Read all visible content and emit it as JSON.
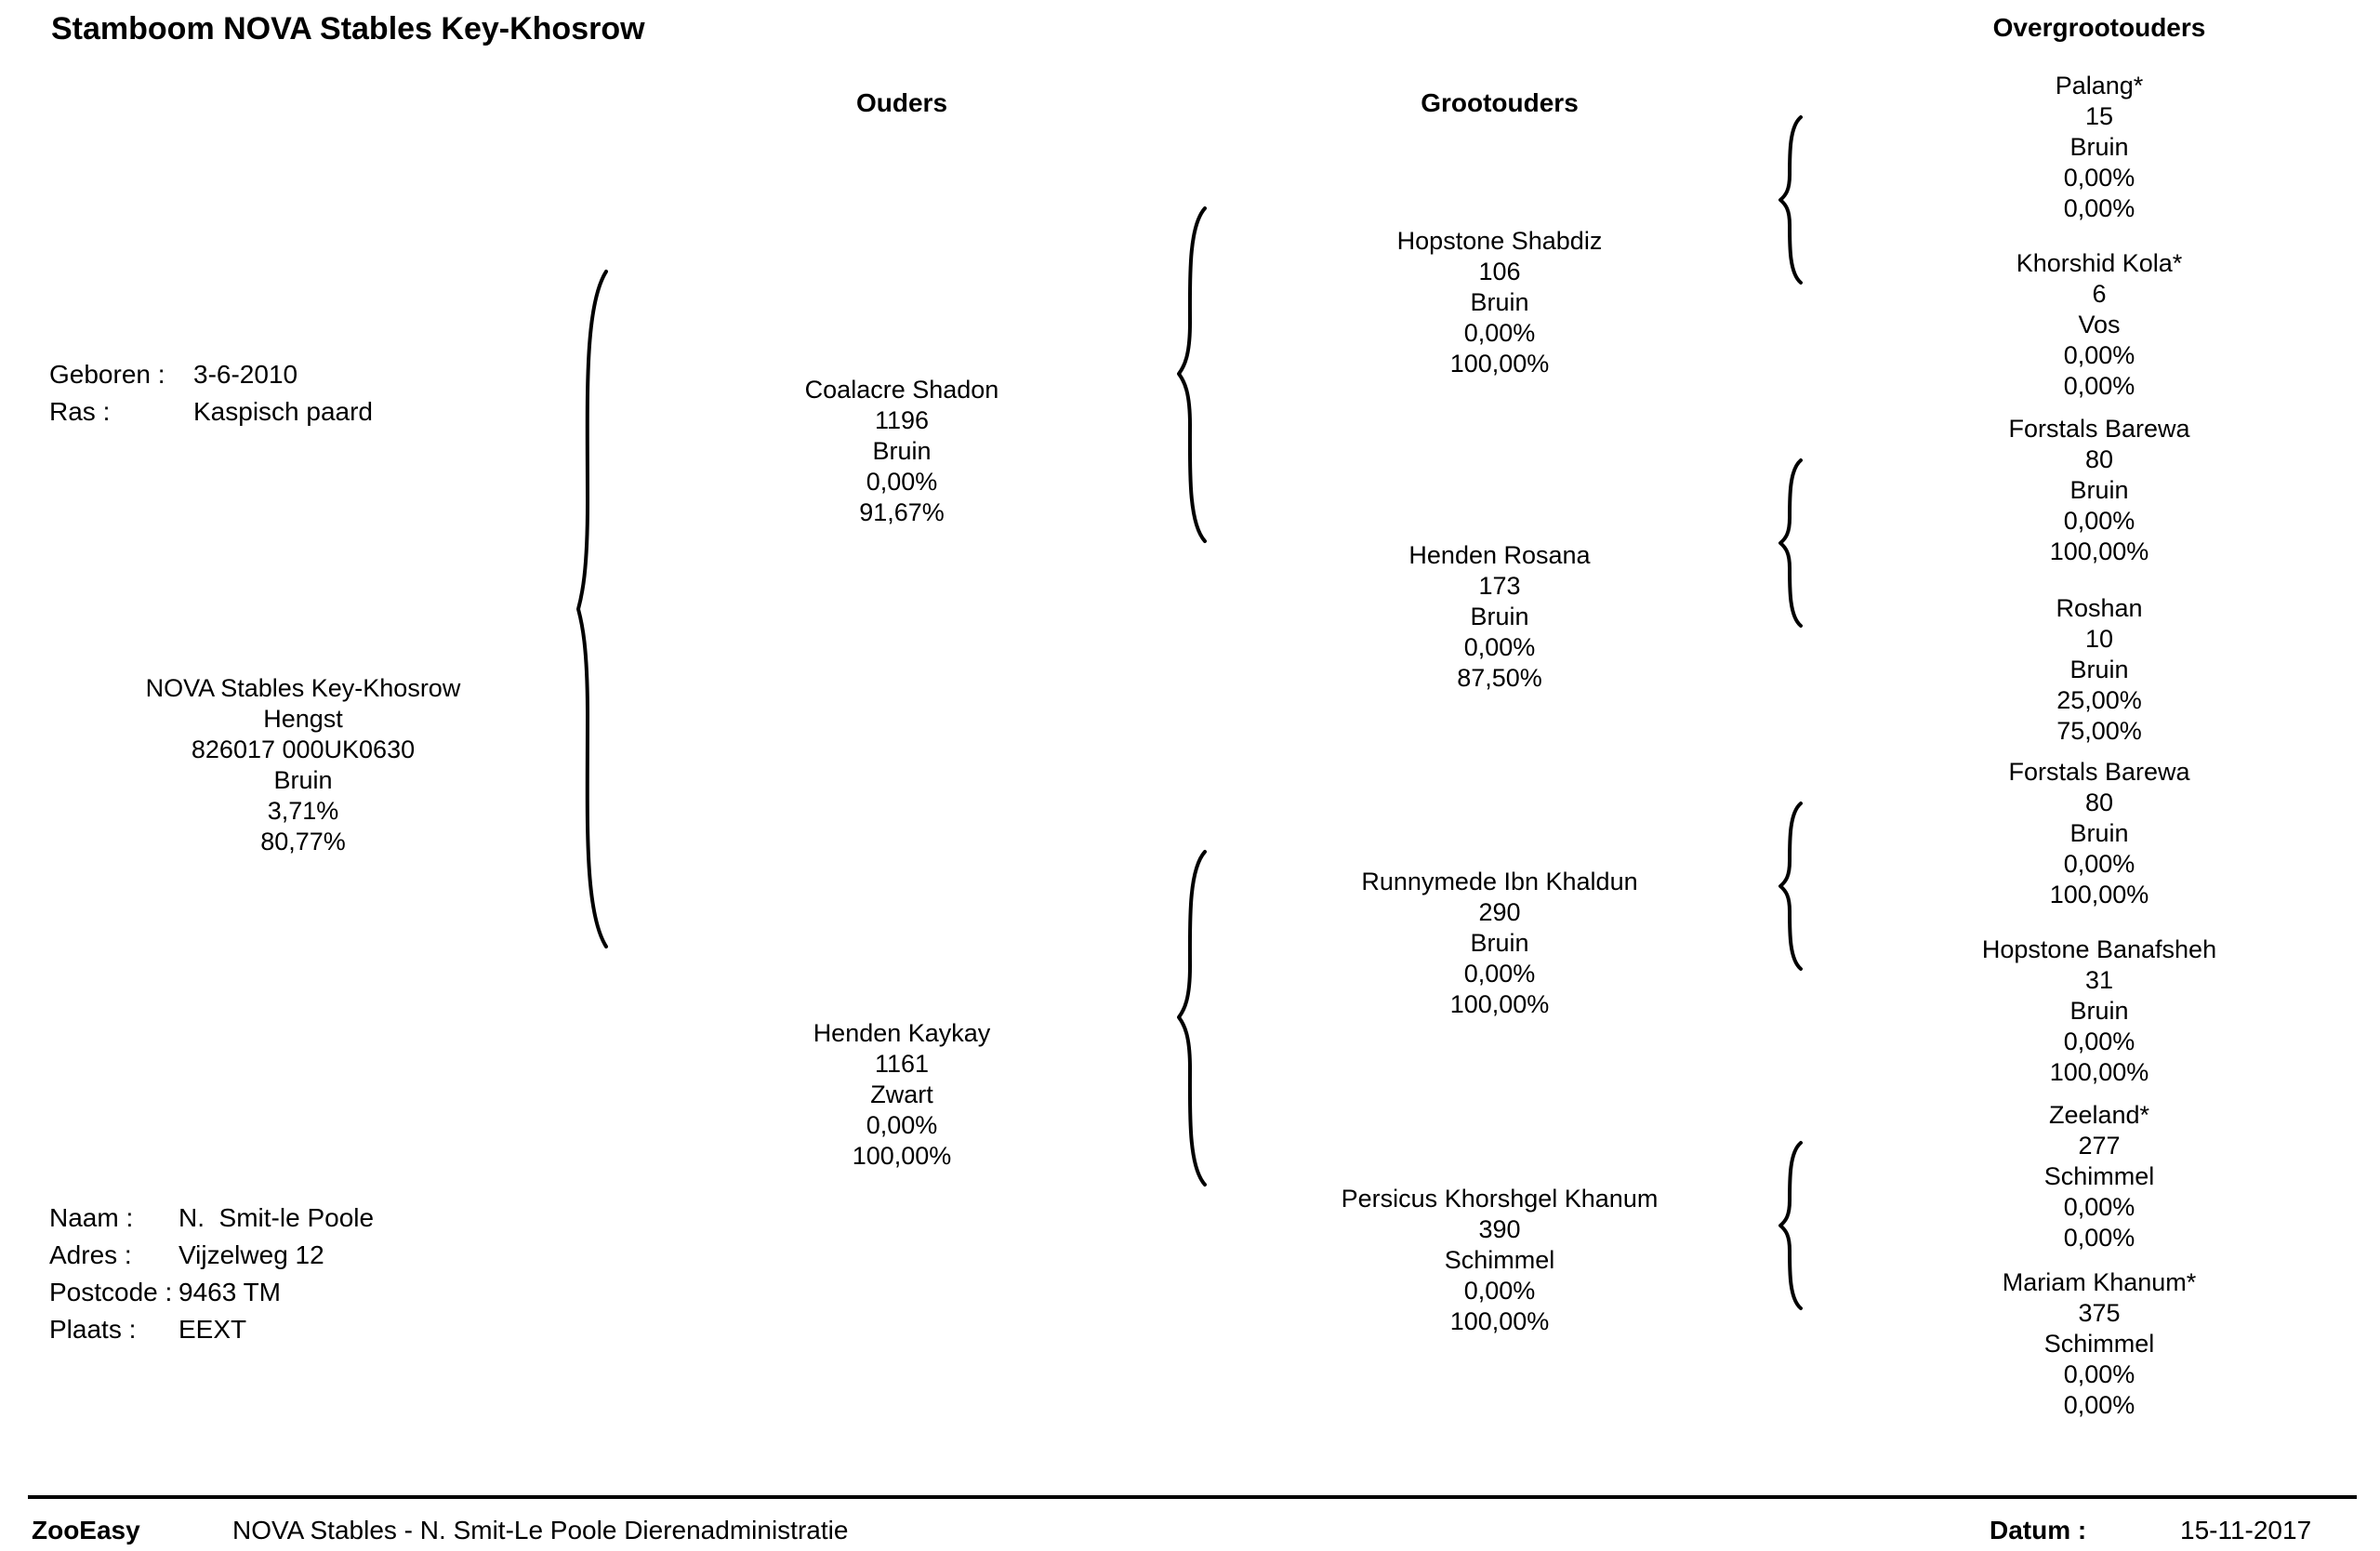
{
  "title": "Stamboom NOVA Stables Key-Khosrow",
  "columns": {
    "parents": "Ouders",
    "grandparents": "Grootouders",
    "great_grandparents": "Overgrootouders"
  },
  "birth_info": {
    "born_label": "Geboren :",
    "born_value": "3-6-2010",
    "breed_label": "Ras :",
    "breed_value": "Kaspisch paard"
  },
  "subject": {
    "name": "NOVA Stables Key-Khosrow",
    "sex": "Hengst",
    "id": "826017 000UK0630",
    "color": "Bruin",
    "pct1": "3,71%",
    "pct2": "80,77%"
  },
  "parents": [
    {
      "name": "Coalacre Shadon",
      "number": "1196",
      "color": "Bruin",
      "pct1": "0,00%",
      "pct2": "91,67%"
    },
    {
      "name": "Henden Kaykay",
      "number": "1161",
      "color": "Zwart",
      "pct1": "0,00%",
      "pct2": "100,00%"
    }
  ],
  "grandparents": [
    {
      "name": "Hopstone Shabdiz",
      "number": "106",
      "color": "Bruin",
      "pct1": "0,00%",
      "pct2": "100,00%"
    },
    {
      "name": "Henden Rosana",
      "number": "173",
      "color": "Bruin",
      "pct1": "0,00%",
      "pct2": "87,50%"
    },
    {
      "name": "Runnymede Ibn Khaldun",
      "number": "290",
      "color": "Bruin",
      "pct1": "0,00%",
      "pct2": "100,00%"
    },
    {
      "name": "Persicus Khorshgel Khanum",
      "number": "390",
      "color": "Schimmel",
      "pct1": "0,00%",
      "pct2": "100,00%"
    }
  ],
  "great_grandparents": [
    {
      "name": "Palang*",
      "number": "15",
      "color": "Bruin",
      "pct1": "0,00%",
      "pct2": "0,00%"
    },
    {
      "name": "Khorshid Kola*",
      "number": "6",
      "color": "Vos",
      "pct1": "0,00%",
      "pct2": "0,00%"
    },
    {
      "name": "Forstals Barewa",
      "number": "80",
      "color": "Bruin",
      "pct1": "0,00%",
      "pct2": "100,00%"
    },
    {
      "name": "Roshan",
      "number": "10",
      "color": "Bruin",
      "pct1": "25,00%",
      "pct2": "75,00%"
    },
    {
      "name": "Forstals Barewa",
      "number": "80",
      "color": "Bruin",
      "pct1": "0,00%",
      "pct2": "100,00%"
    },
    {
      "name": "Hopstone Banafsheh",
      "number": "31",
      "color": "Bruin",
      "pct1": "0,00%",
      "pct2": "100,00%"
    },
    {
      "name": "Zeeland*",
      "number": "277",
      "color": "Schimmel",
      "pct1": "0,00%",
      "pct2": "0,00%"
    },
    {
      "name": "Mariam Khanum*",
      "number": "375",
      "color": "Schimmel",
      "pct1": "0,00%",
      "pct2": "0,00%"
    }
  ],
  "owner": {
    "name_label": "Naam :",
    "name_value": "N.  Smit-le Poole",
    "address_label": "Adres :",
    "address_value": "Vijzelweg 12",
    "postcode_label": "Postcode :",
    "postcode_value": "9463 TM",
    "city_label": "Plaats :",
    "city_value": "EEXT"
  },
  "footer": {
    "app": "ZooEasy",
    "organization": "NOVA Stables - N. Smit-Le Poole Dierenadministratie",
    "date_label": "Datum :",
    "date_value": "15-11-2017"
  }
}
